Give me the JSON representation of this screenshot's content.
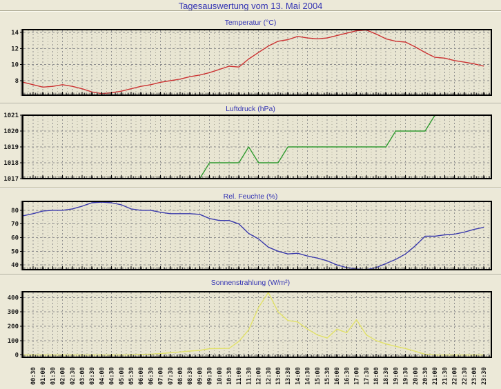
{
  "page": {
    "title": "Tagesauswertung vom 13. Mai 2004"
  },
  "x_labels": [
    "00:30",
    "01:00",
    "01:30",
    "02:00",
    "02:30",
    "03:00",
    "03:30",
    "04:00",
    "04:30",
    "05:00",
    "05:30",
    "06:00",
    "06:30",
    "07:00",
    "07:30",
    "08:00",
    "08:30",
    "09:00",
    "09:30",
    "10:00",
    "10:30",
    "11:00",
    "11:30",
    "12:00",
    "12:30",
    "13:00",
    "13:30",
    "14:00",
    "14:30",
    "15:00",
    "15:30",
    "16:00",
    "16:30",
    "17:00",
    "17:30",
    "18:00",
    "18:30",
    "19:00",
    "19:30",
    "20:00",
    "20:30",
    "21:00",
    "21:30",
    "22:00",
    "22:30",
    "23:00",
    "23:30"
  ],
  "colors": {
    "page_background": "#ece9d8",
    "plot_background": "#e8e5d2",
    "title_text": "#3333b3",
    "axis_text": "#1a1a1a",
    "grid_major": "#8f8f8f",
    "grid_minor": "#a8a694",
    "frame": "#000000"
  },
  "chart_data": [
    {
      "type": "line",
      "title": "Temperatur (°C)",
      "series_name": "Temperatur",
      "unit": "°C",
      "color": "#cc3333",
      "x_start": "00:00",
      "x_interval_minutes": 30,
      "yticks": [
        8,
        10,
        12,
        14
      ],
      "ylim": [
        6.2,
        14.34
      ],
      "values": [
        7.8,
        7.5,
        7.2,
        7.3,
        7.5,
        7.3,
        7.0,
        6.6,
        6.4,
        6.5,
        6.7,
        7.0,
        7.3,
        7.5,
        7.8,
        8.0,
        8.2,
        8.5,
        8.7,
        9.0,
        9.4,
        9.8,
        9.7,
        10.7,
        11.5,
        12.3,
        12.9,
        13.1,
        13.5,
        13.3,
        13.2,
        13.3,
        13.6,
        13.9,
        14.2,
        14.3,
        13.8,
        13.2,
        12.9,
        12.8,
        12.2,
        11.5,
        10.9,
        10.8,
        10.5,
        10.3,
        10.1,
        9.8
      ]
    },
    {
      "type": "line",
      "title": "Luftdruck (hPa)",
      "series_name": "Luftdruck",
      "unit": "hPa",
      "color": "#2f9a2f",
      "x_start": "00:00",
      "x_interval_minutes": 30,
      "yticks": [
        1017,
        1018,
        1019,
        1020,
        1021
      ],
      "ylim": [
        1017,
        1021
      ],
      "values": [
        1017,
        1017,
        1017,
        1017,
        1017,
        1017,
        1017,
        1017,
        1017,
        1017,
        1017,
        1017,
        1017,
        1017,
        1017,
        1017,
        1017,
        1017,
        1017,
        1018,
        1018,
        1018,
        1018,
        1019,
        1018,
        1018,
        1018,
        1019,
        1019,
        1019,
        1019,
        1019,
        1019,
        1019,
        1019,
        1019,
        1019,
        1019,
        1020,
        1020,
        1020,
        1020,
        1021
      ]
    },
    {
      "type": "line",
      "title": "Rel. Feuchte (%)",
      "series_name": "Rel. Feuchte",
      "unit": "%",
      "color": "#3a3aac",
      "x_start": "00:00",
      "x_interval_minutes": 30,
      "yticks": [
        40,
        50,
        60,
        70,
        80
      ],
      "ylim": [
        36.5,
        86.5
      ],
      "values": [
        76,
        77.5,
        79.5,
        80,
        80,
        81,
        83,
        85.5,
        86,
        85.5,
        84,
        81,
        80,
        80,
        78.5,
        77.5,
        77.5,
        77.5,
        77,
        74,
        72.5,
        72.5,
        70,
        63,
        59,
        53,
        50,
        48,
        48.5,
        46.5,
        45,
        43,
        40,
        38,
        37,
        36.5,
        38,
        41,
        44,
        48,
        54,
        61,
        61,
        62,
        62.5,
        64,
        66,
        67.5
      ]
    },
    {
      "type": "line",
      "title": "Sonnenstrahlung (W/m²)",
      "series_name": "Sonnenstrahlung",
      "unit": "W/m²",
      "color": "#e2e268",
      "x_start": "00:00",
      "x_interval_minutes": 30,
      "yticks": [
        0,
        100,
        200,
        300,
        400
      ],
      "ylim": [
        -16,
        440
      ],
      "values": [
        0,
        0,
        0,
        0,
        0,
        0,
        0,
        0,
        0,
        0,
        0,
        1,
        3,
        6,
        10,
        15,
        21,
        27,
        32,
        44,
        45,
        46,
        95,
        175,
        330,
        435,
        300,
        240,
        230,
        180,
        140,
        118,
        180,
        155,
        245,
        140,
        100,
        77,
        60,
        45,
        26,
        5,
        0,
        0,
        0,
        0,
        0,
        0
      ]
    }
  ]
}
